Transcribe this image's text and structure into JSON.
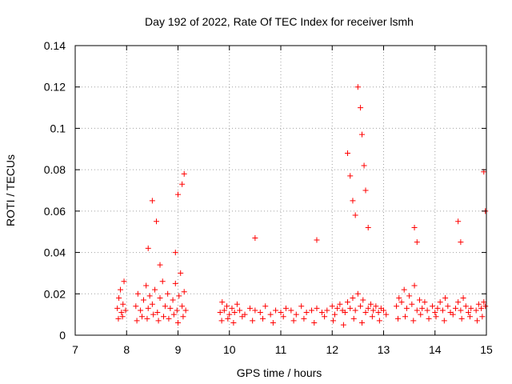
{
  "chart_data": {
    "type": "scatter",
    "title": "Day 192 of 2022, Rate Of TEC Index for receiver lsmh",
    "xlabel": "GPS time / hours",
    "ylabel": "ROTI / TECUs",
    "xlim": [
      7,
      15
    ],
    "ylim": [
      0,
      0.14
    ],
    "xticks": [
      7,
      8,
      9,
      10,
      11,
      12,
      13,
      14,
      15
    ],
    "xtick_labels": [
      "7",
      "8",
      "9",
      "10",
      "11",
      "12",
      "13",
      "14",
      "15"
    ],
    "yticks": [
      0,
      0.02,
      0.04,
      0.06,
      0.08,
      0.1,
      0.12,
      0.14
    ],
    "ytick_labels": [
      "0",
      "0.02",
      "0.04",
      "0.06",
      "0.08",
      "0.1",
      "0.12",
      "0.14"
    ],
    "grid": true,
    "marker": "+",
    "color": "#ff0000",
    "series": [
      {
        "name": "ROTI",
        "x": [
          7.82,
          7.85,
          7.88,
          7.9,
          7.93,
          7.95,
          7.98,
          8.18,
          8.22,
          8.27,
          8.33,
          8.38,
          8.42,
          8.45,
          8.5,
          8.55,
          8.6,
          8.65,
          8.7,
          8.75,
          8.8,
          8.85,
          8.9,
          8.95,
          8.98,
          9.02,
          9.05,
          9.08,
          9.12,
          9.15,
          9.82,
          9.86,
          9.9,
          9.95,
          10.0,
          10.05,
          10.1,
          10.15,
          10.2,
          10.3,
          10.4,
          10.5,
          10.6,
          10.7,
          10.8,
          10.9,
          11.0,
          11.1,
          11.2,
          11.3,
          11.4,
          11.5,
          11.6,
          11.7,
          11.8,
          11.9,
          12.0,
          12.05,
          12.1,
          12.15,
          12.2,
          12.25,
          12.3,
          12.35,
          12.4,
          12.45,
          12.5,
          12.55,
          12.6,
          12.65,
          12.7,
          12.75,
          12.8,
          12.85,
          12.9,
          12.95,
          13.0,
          13.05,
          13.25,
          13.3,
          13.35,
          13.4,
          13.45,
          13.5,
          13.55,
          13.6,
          13.65,
          13.7,
          13.75,
          13.8,
          13.85,
          13.95,
          14.0,
          14.05,
          14.1,
          14.15,
          14.2,
          14.25,
          14.3,
          14.4,
          14.45,
          14.5,
          14.55,
          14.6,
          14.65,
          14.7,
          14.8,
          14.85,
          14.9,
          14.95,
          14.98,
          7.84,
          7.92,
          8.2,
          8.3,
          8.4,
          8.52,
          8.62,
          8.72,
          8.82,
          8.92,
          9.0,
          9.1,
          9.85,
          9.97,
          10.08,
          10.25,
          10.45,
          10.65,
          10.85,
          11.05,
          11.25,
          11.45,
          11.65,
          11.85,
          12.02,
          12.22,
          12.42,
          12.58,
          12.78,
          12.92,
          13.28,
          13.42,
          13.58,
          13.72,
          13.88,
          14.02,
          14.18,
          14.35,
          14.52,
          14.68,
          14.82,
          14.92,
          8.42,
          8.5,
          8.58,
          8.65,
          8.95,
          9.0,
          9.08,
          9.12,
          10.5,
          11.7,
          12.3,
          12.35,
          12.4,
          12.45,
          12.5,
          12.55,
          12.58,
          12.62,
          12.65,
          12.7,
          13.6,
          13.65,
          14.45,
          14.5,
          14.95,
          14.98
        ],
        "y": [
          0.013,
          0.018,
          0.022,
          0.011,
          0.015,
          0.026,
          0.012,
          0.014,
          0.02,
          0.012,
          0.017,
          0.024,
          0.013,
          0.019,
          0.015,
          0.022,
          0.011,
          0.018,
          0.026,
          0.014,
          0.02,
          0.013,
          0.017,
          0.025,
          0.012,
          0.019,
          0.03,
          0.014,
          0.021,
          0.012,
          0.011,
          0.016,
          0.012,
          0.014,
          0.01,
          0.013,
          0.011,
          0.015,
          0.012,
          0.01,
          0.013,
          0.012,
          0.011,
          0.014,
          0.01,
          0.012,
          0.011,
          0.013,
          0.012,
          0.01,
          0.014,
          0.011,
          0.012,
          0.013,
          0.011,
          0.012,
          0.014,
          0.01,
          0.013,
          0.015,
          0.012,
          0.011,
          0.016,
          0.013,
          0.018,
          0.012,
          0.02,
          0.014,
          0.017,
          0.011,
          0.013,
          0.015,
          0.012,
          0.014,
          0.011,
          0.013,
          0.012,
          0.01,
          0.014,
          0.018,
          0.016,
          0.022,
          0.013,
          0.019,
          0.015,
          0.024,
          0.012,
          0.017,
          0.013,
          0.016,
          0.012,
          0.014,
          0.011,
          0.013,
          0.016,
          0.012,
          0.018,
          0.014,
          0.011,
          0.013,
          0.016,
          0.012,
          0.018,
          0.014,
          0.011,
          0.013,
          0.012,
          0.015,
          0.013,
          0.016,
          0.014,
          0.008,
          0.009,
          0.007,
          0.009,
          0.008,
          0.01,
          0.007,
          0.009,
          0.008,
          0.01,
          0.006,
          0.009,
          0.007,
          0.008,
          0.006,
          0.009,
          0.007,
          0.008,
          0.006,
          0.009,
          0.007,
          0.008,
          0.006,
          0.009,
          0.007,
          0.005,
          0.008,
          0.006,
          0.009,
          0.007,
          0.008,
          0.009,
          0.007,
          0.01,
          0.008,
          0.009,
          0.007,
          0.01,
          0.008,
          0.009,
          0.007,
          0.009,
          0.042,
          0.065,
          0.055,
          0.034,
          0.04,
          0.068,
          0.073,
          0.078,
          0.047,
          0.046,
          0.088,
          0.077,
          0.065,
          0.058,
          0.12,
          0.11,
          0.097,
          0.082,
          0.07,
          0.052,
          0.052,
          0.045,
          0.055,
          0.045,
          0.079,
          0.06
        ]
      }
    ]
  }
}
